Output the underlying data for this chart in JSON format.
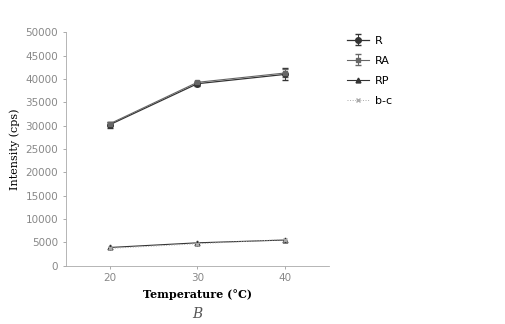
{
  "x": [
    20,
    30,
    40
  ],
  "series": [
    {
      "label": "R",
      "y": [
        30200,
        39000,
        41000
      ],
      "yerr": [
        700,
        400,
        1300
      ],
      "color": "#333333",
      "marker": "o",
      "linestyle": "-",
      "markersize": 4,
      "linewidth": 0.9
    },
    {
      "label": "RA",
      "y": [
        30400,
        39300,
        41300
      ],
      "yerr": [
        500,
        300,
        800
      ],
      "color": "#666666",
      "marker": "s",
      "linestyle": "-",
      "markersize": 3.5,
      "linewidth": 0.8
    },
    {
      "label": "RP",
      "y": [
        3900,
        4900,
        5500
      ],
      "yerr": [
        0,
        0,
        0
      ],
      "color": "#333333",
      "marker": "^",
      "linestyle": "-",
      "markersize": 3.5,
      "linewidth": 0.8
    },
    {
      "label": "b-c",
      "y": [
        3700,
        4700,
        5600
      ],
      "yerr": [
        0,
        0,
        0
      ],
      "color": "#aaaaaa",
      "marker": "x",
      "linestyle": ":",
      "markersize": 3.5,
      "linewidth": 0.7
    }
  ],
  "xlabel": "Temperature (°C)",
  "ylabel": "Intensity (cps)",
  "ylim": [
    0,
    50000
  ],
  "yticks": [
    0,
    5000,
    10000,
    15000,
    20000,
    25000,
    30000,
    35000,
    40000,
    45000,
    50000
  ],
  "xticks": [
    20,
    30,
    40
  ],
  "bottom_label": "B",
  "background_color": "#ffffff",
  "spine_color": "#aaaaaa",
  "tick_color": "#888888"
}
